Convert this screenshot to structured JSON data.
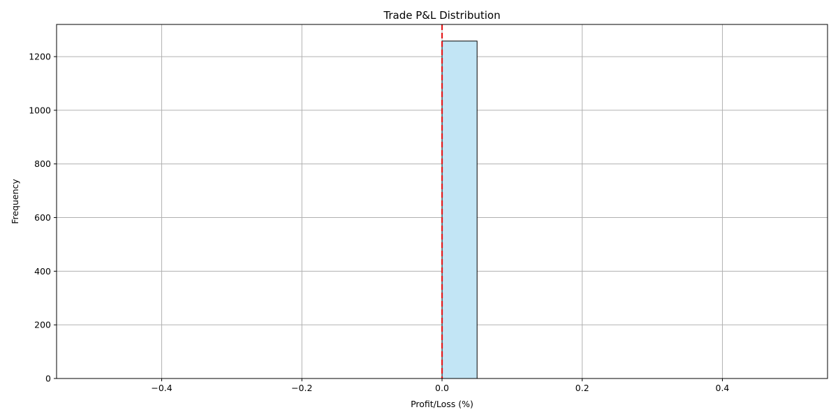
{
  "chart_data": {
    "type": "bar",
    "title": "Trade P&L Distribution",
    "xlabel": "Profit/Loss (%)",
    "ylabel": "Frequency",
    "xlim": [
      -0.55,
      0.55
    ],
    "ylim": [
      0,
      1320
    ],
    "xticks": [
      -0.4,
      -0.2,
      0.0,
      0.2,
      0.4
    ],
    "xtick_labels": [
      "−0.4",
      "−0.2",
      "0.0",
      "0.2",
      "0.4"
    ],
    "yticks": [
      0,
      200,
      400,
      600,
      800,
      1000,
      1200
    ],
    "ytick_labels": [
      "0",
      "200",
      "400",
      "600",
      "800",
      "1000",
      "1200"
    ],
    "bins": [
      {
        "x0": -0.5,
        "x1": -0.45,
        "count": 0
      },
      {
        "x0": -0.45,
        "x1": -0.4,
        "count": 0
      },
      {
        "x0": -0.4,
        "x1": -0.35,
        "count": 0
      },
      {
        "x0": -0.35,
        "x1": -0.3,
        "count": 0
      },
      {
        "x0": -0.3,
        "x1": -0.25,
        "count": 0
      },
      {
        "x0": -0.25,
        "x1": -0.2,
        "count": 0
      },
      {
        "x0": -0.2,
        "x1": -0.15,
        "count": 0
      },
      {
        "x0": -0.15,
        "x1": -0.1,
        "count": 0
      },
      {
        "x0": -0.1,
        "x1": -0.05,
        "count": 0
      },
      {
        "x0": -0.05,
        "x1": 0.0,
        "count": 0
      },
      {
        "x0": 0.0,
        "x1": 0.05,
        "count": 1258
      },
      {
        "x0": 0.05,
        "x1": 0.1,
        "count": 0
      },
      {
        "x0": 0.1,
        "x1": 0.15,
        "count": 0
      },
      {
        "x0": 0.15,
        "x1": 0.2,
        "count": 0
      },
      {
        "x0": 0.2,
        "x1": 0.25,
        "count": 0
      },
      {
        "x0": 0.25,
        "x1": 0.3,
        "count": 0
      },
      {
        "x0": 0.3,
        "x1": 0.35,
        "count": 0
      },
      {
        "x0": 0.35,
        "x1": 0.4,
        "count": 0
      },
      {
        "x0": 0.4,
        "x1": 0.45,
        "count": 0
      },
      {
        "x0": 0.45,
        "x1": 0.5,
        "count": 0
      }
    ],
    "vline": {
      "x": 0.0,
      "color": "#e31a1c",
      "style": "dashed"
    },
    "bar_color": "#c2e5f5",
    "bar_edge_color": "#000000",
    "grid": true
  }
}
